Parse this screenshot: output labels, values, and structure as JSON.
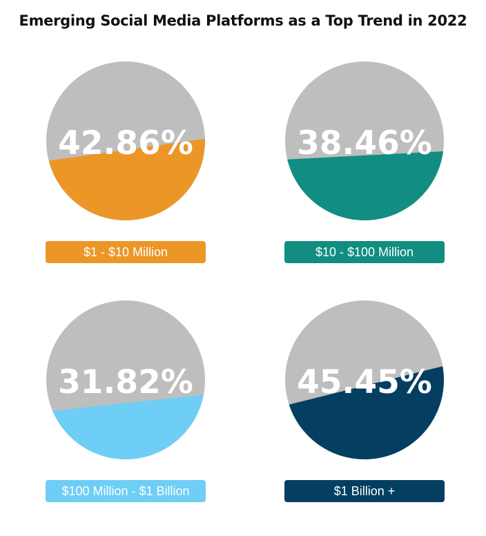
{
  "title": "Emerging Social Media Platforms as a Top Trend in 2022",
  "chart_data": [
    {
      "type": "pie",
      "value_label": "42.86%",
      "value": 42.86,
      "category": "$1 - $10 Million",
      "color": "#EC9628",
      "rest_color": "#BEBEBE"
    },
    {
      "type": "pie",
      "value_label": "38.46%",
      "value": 38.46,
      "category": "$10 - $100 Million",
      "color": "#118D82",
      "rest_color": "#BEBEBE"
    },
    {
      "type": "pie",
      "value_label": "31.82%",
      "value": 31.82,
      "category": "$100 Million - $1 Billion",
      "color": "#6ECEF5",
      "rest_color": "#BEBEBE"
    },
    {
      "type": "pie",
      "value_label": "45.45%",
      "value": 45.45,
      "category": "$1 Billion +",
      "color": "#043F62",
      "rest_color": "#BEBEBE"
    }
  ]
}
